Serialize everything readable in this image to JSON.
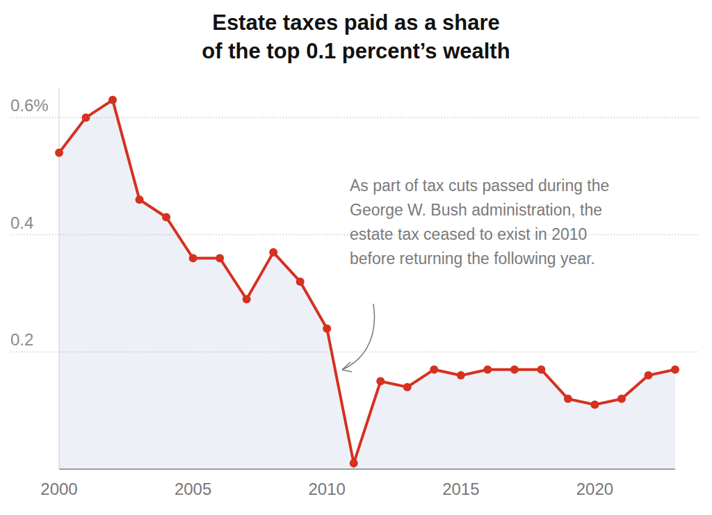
{
  "chart_data": {
    "type": "line",
    "title": "Estate taxes paid as a share of the top 0.1 percent’s wealth",
    "annotation": "As part of tax cuts passed during the George W. Bush administration, the estate tax ceased to exist in 2010 before returning the following year.",
    "x": [
      2000,
      2001,
      2002,
      2003,
      2004,
      2005,
      2006,
      2007,
      2008,
      2009,
      2010,
      2011,
      2012,
      2013,
      2014,
      2015,
      2016,
      2017,
      2018,
      2019,
      2020,
      2021,
      2022,
      2023
    ],
    "values": [
      0.54,
      0.6,
      0.63,
      0.46,
      0.43,
      0.36,
      0.36,
      0.29,
      0.37,
      0.32,
      0.24,
      0.01,
      0.15,
      0.14,
      0.17,
      0.16,
      0.17,
      0.17,
      0.17,
      0.12,
      0.11,
      0.12,
      0.16,
      0.17
    ],
    "color": "#d5311f",
    "marker": "circle",
    "xlim": [
      2000,
      2023
    ],
    "xticks": [
      2000,
      2005,
      2010,
      2015,
      2020
    ],
    "ylim": [
      0,
      0.65
    ],
    "yticks": [
      0.2,
      0.4,
      {
        "value": 0.6,
        "label": "0.6%"
      }
    ],
    "grid": true
  }
}
